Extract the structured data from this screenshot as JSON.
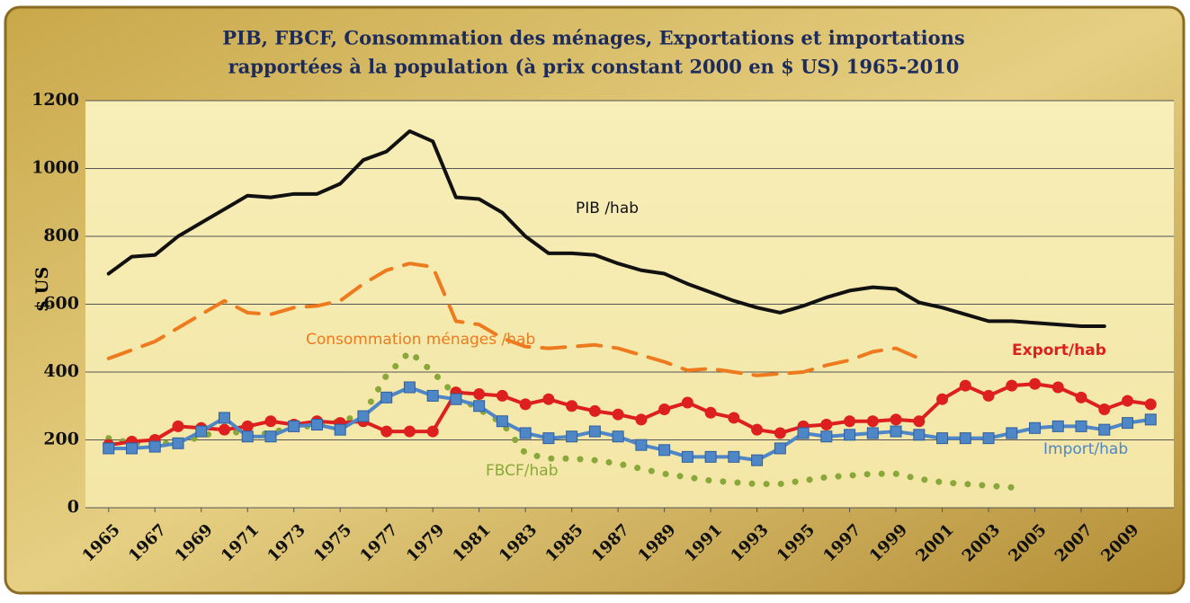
{
  "chart_data": {
    "type": "line",
    "title": [
      "PIB, FBCF, Consommation des ménages, Exportations et importations",
      "rapportées à la population (à prix constant  2000 en $ US) 1965-2010"
    ],
    "y_label": "$ US",
    "x": [
      1965,
      1966,
      1967,
      1968,
      1969,
      1970,
      1971,
      1972,
      1973,
      1974,
      1975,
      1976,
      1977,
      1978,
      1979,
      1980,
      1981,
      1982,
      1983,
      1984,
      1985,
      1986,
      1987,
      1988,
      1989,
      1990,
      1991,
      1992,
      1993,
      1994,
      1995,
      1996,
      1997,
      1998,
      1999,
      2000,
      2001,
      2002,
      2003,
      2004,
      2005,
      2006,
      2007,
      2008,
      2009,
      2010
    ],
    "xlim": [
      1964,
      2011
    ],
    "xticks": [
      1965,
      1967,
      1969,
      1971,
      1973,
      1975,
      1977,
      1979,
      1981,
      1983,
      1985,
      1987,
      1989,
      1991,
      1993,
      1995,
      1997,
      1999,
      2001,
      2003,
      2005,
      2007,
      2009
    ],
    "ylim": [
      0,
      1200
    ],
    "yticks": [
      0,
      200,
      400,
      600,
      800,
      1000,
      1200
    ],
    "grid": true,
    "series": [
      {
        "name": "PIB /hab",
        "color": "#111111",
        "style": "solid",
        "marker": "none",
        "values": [
          690,
          740,
          745,
          800,
          840,
          880,
          920,
          915,
          925,
          925,
          955,
          1025,
          1050,
          1110,
          1080,
          915,
          910,
          870,
          800,
          750,
          750,
          745,
          720,
          700,
          690,
          660,
          635,
          610,
          590,
          575,
          595,
          620,
          640,
          650,
          645,
          605,
          590,
          570,
          550,
          550,
          545,
          540,
          535,
          535,
          null,
          null
        ]
      },
      {
        "name": "Consommation ménages /hab",
        "color": "#ee7a1e",
        "style": "dashed",
        "marker": "none",
        "values": [
          440,
          465,
          490,
          530,
          570,
          610,
          575,
          570,
          590,
          595,
          610,
          660,
          700,
          720,
          710,
          550,
          540,
          500,
          475,
          470,
          475,
          480,
          470,
          450,
          430,
          405,
          410,
          400,
          390,
          395,
          400,
          420,
          435,
          460,
          470,
          440,
          null,
          null,
          null,
          null,
          null,
          null,
          null,
          null,
          null,
          null
        ]
      },
      {
        "name": "FBCF/hab",
        "color": "#8aa83a",
        "style": "dotted",
        "marker": "none",
        "values": [
          205,
          190,
          190,
          190,
          210,
          230,
          215,
          220,
          240,
          240,
          255,
          275,
          390,
          460,
          400,
          330,
          290,
          250,
          160,
          145,
          145,
          140,
          130,
          115,
          100,
          90,
          80,
          75,
          70,
          70,
          80,
          90,
          95,
          100,
          100,
          85,
          75,
          70,
          65,
          60,
          null,
          null,
          null,
          null,
          null,
          null
        ]
      },
      {
        "name": "Export/hab",
        "color": "#dd1f1f",
        "style": "solid",
        "marker": "circle",
        "values": [
          185,
          195,
          200,
          240,
          235,
          230,
          240,
          255,
          245,
          255,
          250,
          255,
          225,
          225,
          225,
          340,
          335,
          330,
          305,
          320,
          300,
          285,
          275,
          260,
          290,
          310,
          280,
          265,
          230,
          220,
          240,
          245,
          255,
          255,
          260,
          255,
          320,
          360,
          330,
          360,
          365,
          355,
          325,
          290,
          315,
          305
        ]
      },
      {
        "name": "Import/hab",
        "color": "#4f86c6",
        "style": "solid",
        "marker": "square",
        "values": [
          175,
          175,
          180,
          190,
          225,
          265,
          210,
          210,
          240,
          245,
          230,
          270,
          325,
          355,
          330,
          320,
          300,
          255,
          220,
          205,
          210,
          225,
          210,
          185,
          170,
          150,
          150,
          150,
          140,
          175,
          220,
          210,
          215,
          220,
          225,
          215,
          205,
          205,
          205,
          220,
          235,
          240,
          240,
          230,
          250,
          260
        ]
      }
    ]
  }
}
